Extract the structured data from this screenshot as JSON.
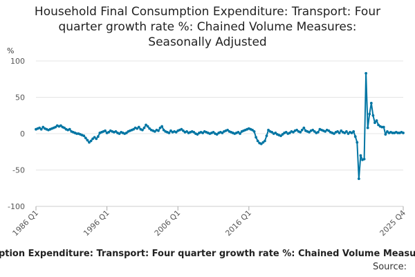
{
  "chart_data": {
    "type": "line",
    "title": "Household Final Consumption Expenditure: Transport: Four quarter growth rate %: Chained Volume Measures: Seasonally Adjusted",
    "title_lines": [
      "Household Final Consumption Expenditure: Transport: Four",
      "quarter growth rate %: Chained Volume Measures:",
      "Seasonally Adjusted"
    ],
    "ylabel": "%",
    "xlabel": "Household Final Consumption Expenditure: Transport: Four quarter growth rate %: Chained Volume Measures: Seasonally Adjusted",
    "source": "Source:",
    "ylim": [
      -100,
      100
    ],
    "yticks": [
      100,
      50,
      0,
      -50,
      -100
    ],
    "xticks": [
      "1986 Q1",
      "1996 Q1",
      "2006 Q1",
      "2016 Q1",
      "2025 Q4"
    ],
    "grid": true,
    "series_color": "#0075a3",
    "series": [
      {
        "name": "Four quarter growth rate %",
        "start": "1986 Q1",
        "values": [
          6,
          7,
          8,
          6,
          9,
          7,
          6,
          5,
          6,
          7,
          8,
          9,
          11,
          10,
          11,
          9,
          8,
          6,
          5,
          6,
          3,
          2,
          1,
          0,
          0,
          -1,
          -2,
          -3,
          -6,
          -9,
          -12,
          -10,
          -7,
          -5,
          -7,
          -4,
          1,
          2,
          3,
          4,
          1,
          2,
          4,
          3,
          2,
          3,
          1,
          0,
          2,
          1,
          0,
          1,
          3,
          4,
          5,
          6,
          8,
          7,
          9,
          6,
          5,
          8,
          12,
          10,
          7,
          5,
          4,
          3,
          5,
          4,
          8,
          10,
          5,
          3,
          2,
          1,
          4,
          2,
          3,
          2,
          4,
          5,
          6,
          4,
          2,
          3,
          1,
          2,
          3,
          2,
          0,
          -1,
          1,
          2,
          1,
          3,
          2,
          1,
          0,
          1,
          2,
          0,
          -1,
          1,
          2,
          1,
          3,
          4,
          5,
          3,
          2,
          1,
          0,
          1,
          2,
          0,
          3,
          4,
          5,
          6,
          7,
          6,
          5,
          3,
          -5,
          -10,
          -13,
          -14,
          -12,
          -10,
          -3,
          5,
          3,
          2,
          0,
          1,
          -1,
          -2,
          -3,
          -1,
          1,
          2,
          0,
          1,
          3,
          2,
          4,
          5,
          3,
          2,
          5,
          8,
          4,
          3,
          2,
          4,
          5,
          3,
          1,
          2,
          6,
          5,
          4,
          3,
          5,
          4,
          2,
          1,
          0,
          2,
          3,
          1,
          4,
          2,
          1,
          3,
          0,
          2,
          1,
          3,
          -4,
          -12,
          -62,
          -30,
          -36,
          -35,
          83,
          8,
          27,
          42,
          25,
          15,
          18,
          12,
          10,
          9,
          9,
          -1,
          3,
          1,
          2,
          1,
          1,
          2,
          1,
          1,
          2,
          1
        ]
      }
    ]
  }
}
